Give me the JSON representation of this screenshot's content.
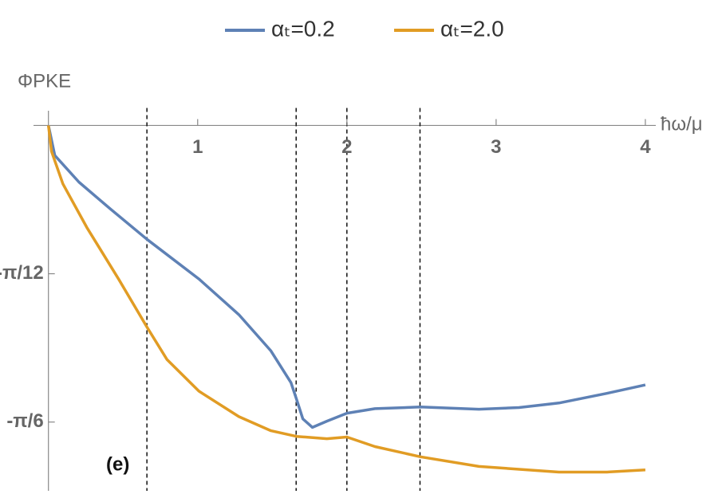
{
  "chart_data": {
    "type": "line",
    "xlabel": "ħω/μ",
    "ylabel": "ΦPKE",
    "annotation": "(e)",
    "xlim": [
      -0.1,
      4.07
    ],
    "ylim": [
      -0.645,
      0.04
    ],
    "xticks": [
      1,
      2,
      3,
      4
    ],
    "yticks": [
      {
        "value": -0.2618,
        "label": "-π/12"
      },
      {
        "value": -0.5236,
        "label": "-π/6"
      }
    ],
    "vlines": [
      0.66,
      1.66,
      2.0,
      2.49
    ],
    "series": [
      {
        "name": "αₜ=0.2",
        "color": "#5e81b5",
        "x": [
          0,
          0.043,
          0.204,
          0.418,
          0.66,
          1.008,
          1.276,
          1.491,
          1.625,
          1.662,
          1.705,
          1.769,
          1.866,
          2.0,
          2.188,
          2.493,
          2.885,
          3.153,
          3.421,
          3.742,
          4.0
        ],
        "values": [
          0,
          -0.053,
          -0.1,
          -0.148,
          -0.201,
          -0.271,
          -0.334,
          -0.398,
          -0.454,
          -0.483,
          -0.518,
          -0.533,
          -0.522,
          -0.508,
          -0.5,
          -0.497,
          -0.501,
          -0.498,
          -0.49,
          -0.473,
          -0.458
        ]
      },
      {
        "name": "αₜ=2.0",
        "color": "#e19c24",
        "x": [
          0,
          0.021,
          0.097,
          0.257,
          0.472,
          0.66,
          0.794,
          1.008,
          1.276,
          1.491,
          1.662,
          1.866,
          2.0,
          2.188,
          2.493,
          2.885,
          3.421,
          3.742,
          4.0
        ],
        "values": [
          0,
          -0.046,
          -0.103,
          -0.18,
          -0.272,
          -0.356,
          -0.413,
          -0.469,
          -0.514,
          -0.539,
          -0.549,
          -0.553,
          -0.55,
          -0.567,
          -0.585,
          -0.602,
          -0.612,
          -0.612,
          -0.608
        ]
      }
    ]
  }
}
